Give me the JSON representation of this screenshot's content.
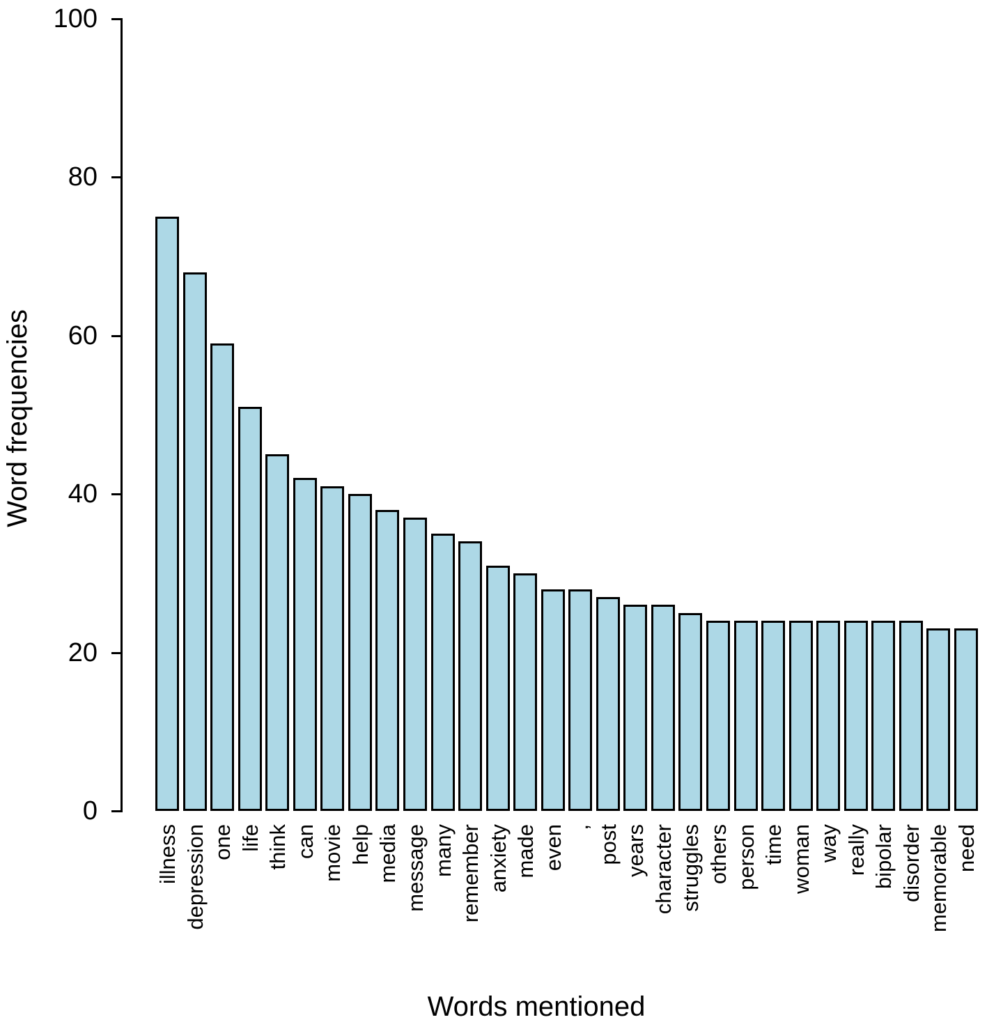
{
  "chart_data": {
    "type": "bar",
    "title": "",
    "xlabel": "Words mentioned",
    "ylabel": "Word frequencies",
    "categories": [
      "illness",
      "depression",
      "one",
      "life",
      "think",
      "can",
      "movie",
      "help",
      "media",
      "message",
      "many",
      "remember",
      "anxiety",
      "made",
      "even",
      ",",
      "post",
      "years",
      "character",
      "struggles",
      "others",
      "person",
      "time",
      "woman",
      "way",
      "really",
      "bipolar",
      "disorder",
      "memorable",
      "need"
    ],
    "values": [
      75,
      68,
      59,
      51,
      45,
      42,
      41,
      40,
      38,
      37,
      35,
      34,
      31,
      30,
      28,
      28,
      27,
      26,
      26,
      25,
      24,
      24,
      24,
      24,
      24,
      24,
      24,
      24,
      23,
      23
    ],
    "y_ticks": [
      0,
      20,
      40,
      60,
      80,
      100
    ],
    "ylim": [
      0,
      100
    ],
    "grid": false,
    "legend": "none",
    "bar_fill": "#ADD8E6",
    "bar_border": "#000000"
  }
}
